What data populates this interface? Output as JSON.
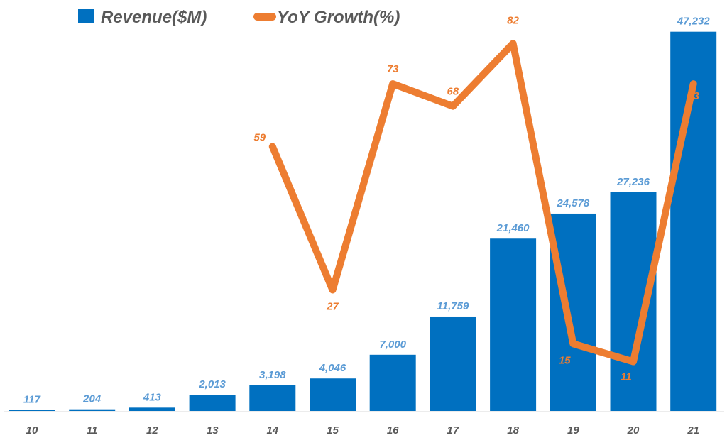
{
  "chart_data": {
    "type": "bar+line",
    "categories": [
      "10",
      "11",
      "12",
      "13",
      "14",
      "15",
      "16",
      "17",
      "18",
      "19",
      "20",
      "21"
    ],
    "series": [
      {
        "name": "Revenue($M)",
        "type": "bar",
        "axis": "primary",
        "values": [
          117,
          204,
          413,
          2013,
          3198,
          4046,
          7000,
          11759,
          21460,
          24578,
          27236,
          47232
        ],
        "labels": [
          "117",
          "204",
          "413",
          "2,013",
          "3,198",
          "4,046",
          "7,000",
          "11,759",
          "21,460",
          "24,578",
          "27,236",
          "47,232"
        ],
        "color": "#0070C0",
        "label_color": "#5B9BD5"
      },
      {
        "name": "YoY Growth(%)",
        "type": "line",
        "axis": "secondary",
        "values": [
          null,
          null,
          null,
          null,
          59,
          27,
          73,
          68,
          82,
          15,
          11,
          73
        ],
        "labels": [
          "",
          "",
          "",
          "",
          "59",
          "27",
          "73",
          "68",
          "82",
          "15",
          "11",
          "73"
        ],
        "color": "#ED7D31"
      }
    ],
    "ylim": [
      0,
      48000
    ],
    "y2lim": [
      0,
      86
    ],
    "grid": false,
    "legend": "top",
    "legend_text_color": "#595959",
    "xtick_color": "#595959"
  }
}
